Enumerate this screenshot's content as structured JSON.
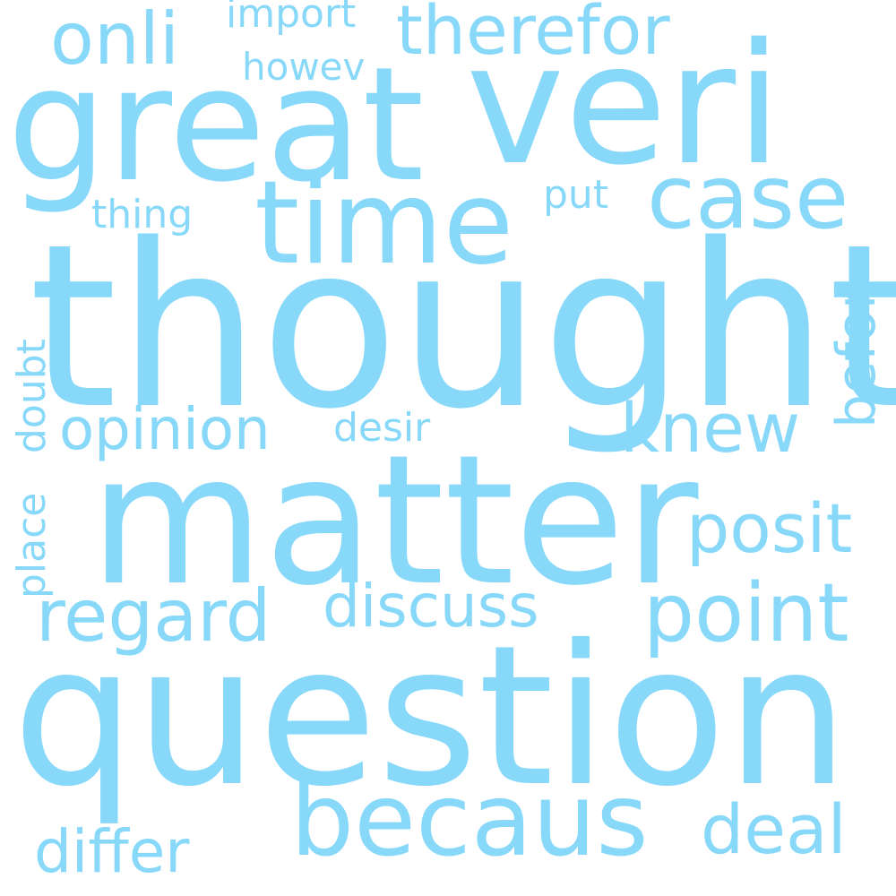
{
  "word_color": "#87D8F9",
  "background_color": "#ffffff",
  "words": {
    "question": "question",
    "thought": "thought",
    "matter": "matter",
    "great": "great",
    "veri": "veri",
    "time": "time",
    "becaus": "becaus",
    "case": "case",
    "point": "point",
    "regard": "regard",
    "opinion": "opinion",
    "knew": "knew",
    "posit": "posit",
    "discuss": "discuss",
    "therefor": "therefor",
    "onli": "onli",
    "deal": "deal",
    "differ": "differ",
    "befor": "befor",
    "import": "import",
    "howev": "howev",
    "thing": "thing",
    "put": "put",
    "desir": "desir",
    "doubt": "doubt",
    "place": "place"
  }
}
